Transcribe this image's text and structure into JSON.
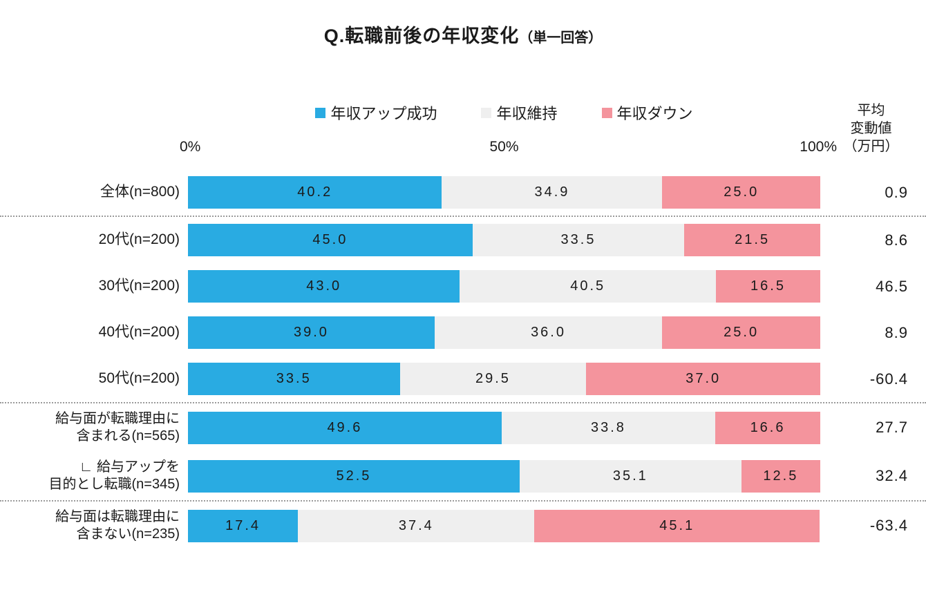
{
  "title": {
    "main": "Q.転職前後の年収変化",
    "sub": "（単一回答）"
  },
  "legend": [
    {
      "label": "年収アップ成功",
      "color": "#29abe2"
    },
    {
      "label": "年収維持",
      "color": "#efefef"
    },
    {
      "label": "年収ダウン",
      "color": "#f4949d"
    }
  ],
  "axis": {
    "tick_0": "0%",
    "tick_50": "50%",
    "tick_100": "100%"
  },
  "avg_header": {
    "line1": "平均",
    "line2": "変動値",
    "line3": "（万円）"
  },
  "chart_data": {
    "type": "bar",
    "orientation": "horizontal",
    "stacked": true,
    "x_range_percent": [
      0,
      100
    ],
    "title": "Q.転職前後の年収変化（単一回答）",
    "value_unit": "%",
    "avg_column_label": "平均変動値（万円）",
    "series_names": [
      "年収アップ成功",
      "年収維持",
      "年収ダウン"
    ],
    "series_colors": [
      "#29abe2",
      "#efefef",
      "#f4949d"
    ],
    "rows": [
      {
        "label_lines": [
          "全体(n=800)"
        ],
        "values": [
          40.2,
          34.9,
          25.0
        ],
        "avg": "0.9",
        "separator_after": true
      },
      {
        "label_lines": [
          "20代(n=200)"
        ],
        "values": [
          45.0,
          33.5,
          21.5
        ],
        "avg": "8.6",
        "separator_after": false
      },
      {
        "label_lines": [
          "30代(n=200)"
        ],
        "values": [
          43.0,
          40.5,
          16.5
        ],
        "avg": "46.5",
        "separator_after": false
      },
      {
        "label_lines": [
          "40代(n=200)"
        ],
        "values": [
          39.0,
          36.0,
          25.0
        ],
        "avg": "8.9",
        "separator_after": false
      },
      {
        "label_lines": [
          "50代(n=200)"
        ],
        "values": [
          33.5,
          29.5,
          37.0
        ],
        "avg": "-60.4",
        "separator_after": true
      },
      {
        "label_lines": [
          "給与面が転職理由に",
          "含まれる(n=565)"
        ],
        "values": [
          49.6,
          33.8,
          16.6
        ],
        "avg": "27.7",
        "separator_after": false
      },
      {
        "label_lines": [
          "∟ 給与アップを",
          "目的とし転職(n=345)"
        ],
        "values": [
          52.5,
          35.1,
          12.5
        ],
        "avg": "32.4",
        "separator_after": true
      },
      {
        "label_lines": [
          "給与面は転職理由に",
          "含まない(n=235)"
        ],
        "values": [
          17.4,
          37.4,
          45.1
        ],
        "avg": "-63.4",
        "separator_after": false
      }
    ]
  }
}
